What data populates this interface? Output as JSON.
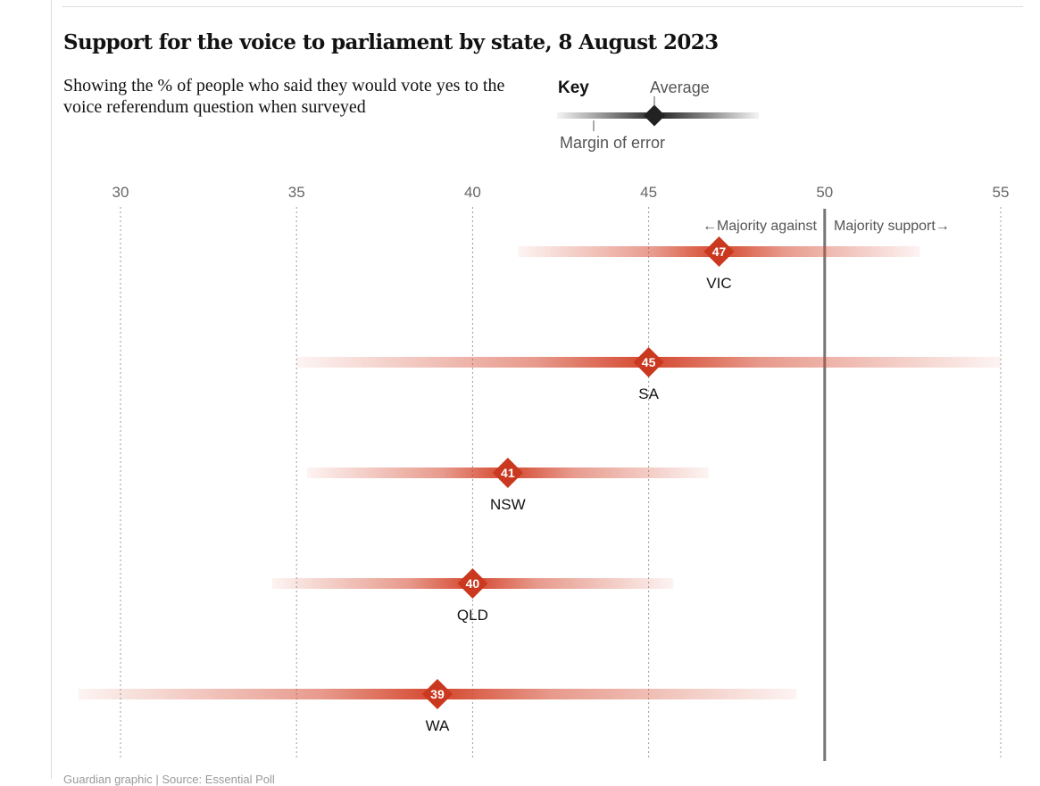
{
  "title": "Support for the voice to parliament by state, 8 August 2023",
  "subtitle": "Showing the % of people who said they would vote yes to the voice referendum question when surveyed",
  "key": {
    "heading": "Key",
    "average_label": "Average",
    "margin_label": "Margin of error"
  },
  "annotations": {
    "left": "←Majority against",
    "right": "Majority support→"
  },
  "footer": "Guardian graphic | Source: Essential Poll",
  "colors": {
    "accent": "#c70000",
    "bar": "#d4472e",
    "marker": "#c9381f",
    "threshold_line": "#767676",
    "grid": "#999999",
    "text": "#121212"
  },
  "chart_data": {
    "type": "dot-range",
    "title": "Support for the voice to parliament by state, 8 August 2023",
    "xlim": [
      30,
      55
    ],
    "ticks": [
      30,
      35,
      40,
      45,
      50,
      55
    ],
    "threshold": 50,
    "grid": true,
    "series": [
      {
        "name": "VIC",
        "value": 47,
        "low": 41.3,
        "high": 52.7
      },
      {
        "name": "SA",
        "value": 45,
        "low": 35,
        "high": 55
      },
      {
        "name": "NSW",
        "value": 41,
        "low": 35.3,
        "high": 46.7
      },
      {
        "name": "QLD",
        "value": 40,
        "low": 34.3,
        "high": 45.7
      },
      {
        "name": "WA",
        "value": 39,
        "low": 28.8,
        "high": 49.2
      }
    ]
  }
}
